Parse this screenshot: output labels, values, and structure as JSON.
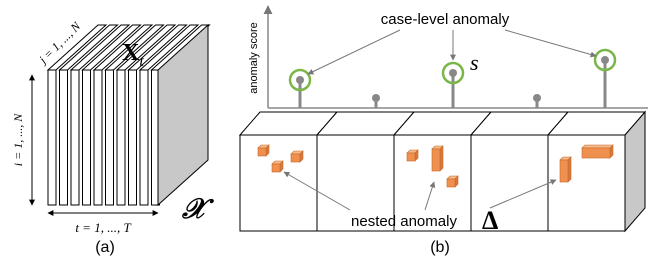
{
  "panel_a": {
    "tensor_slice": {
      "symbol": "X",
      "subscript": "t"
    },
    "row_index": "i = 1, ..., N",
    "col_index": "j = 1, ..., N",
    "time_index": "t = 1, ..., T",
    "tensor": "𝒳",
    "caption": "(a)"
  },
  "panel_b": {
    "y_axis_label": "anomaly score",
    "case_label": "case-level anomaly",
    "score_symbol": "s",
    "nested_label": "nested anomaly",
    "nested_symbol": "Δ",
    "caption": "(b)"
  }
}
